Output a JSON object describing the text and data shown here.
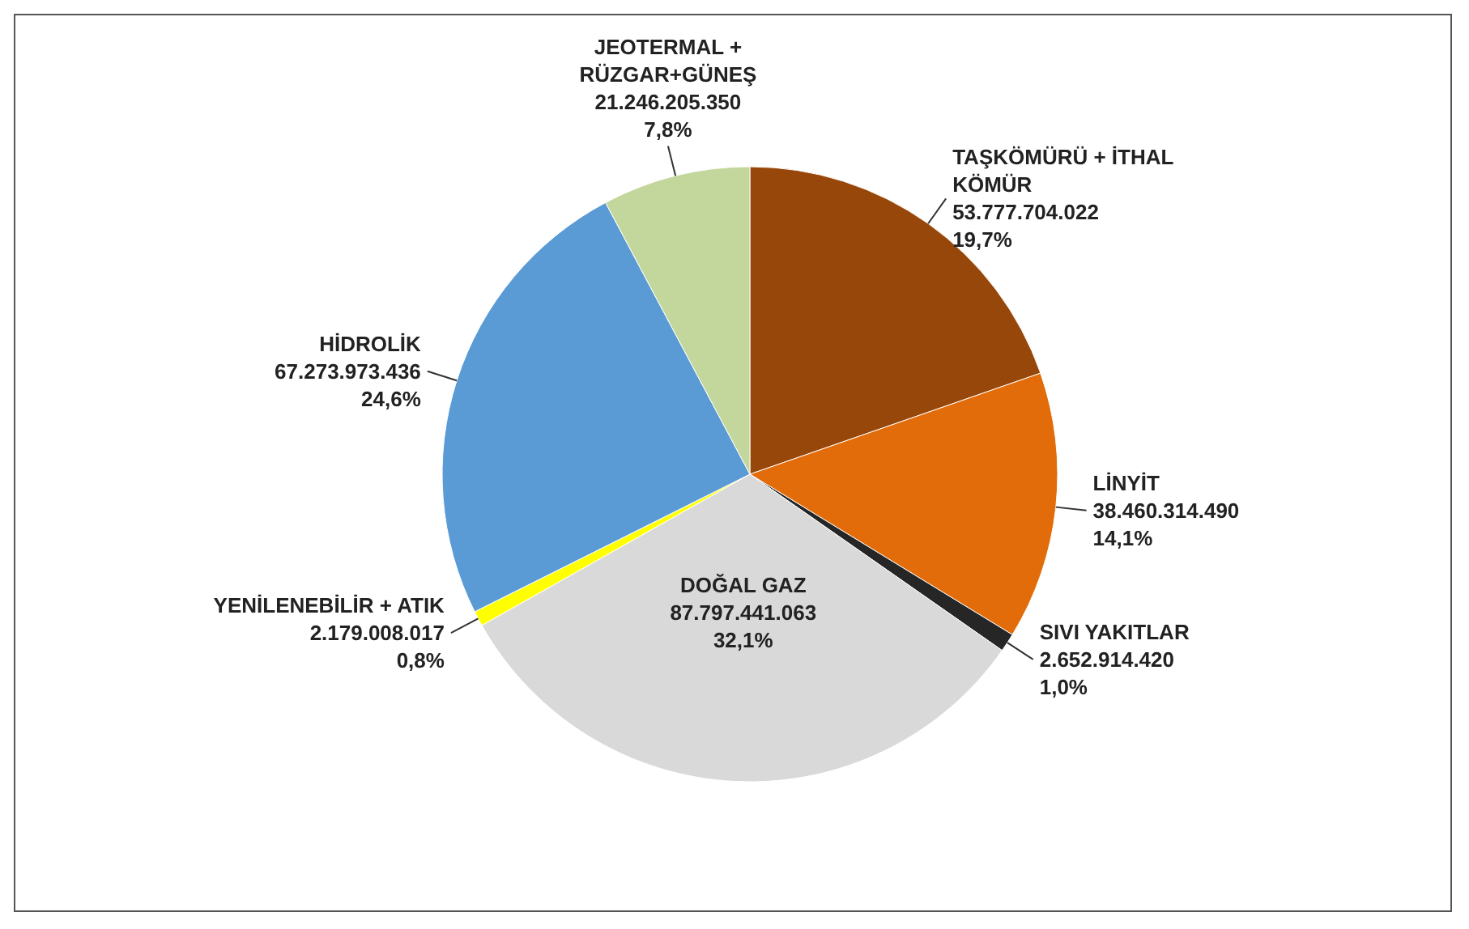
{
  "chart_data": {
    "type": "pie",
    "categories": [
      "TAŞKÖMÜRÜ + İTHAL KÖMÜR",
      "LİNYİT",
      "SIVI YAKITLAR",
      "DOĞAL GAZ",
      "YENİLENEBİLİR + ATIK",
      "HİDROLİK",
      "JEOTERMAL + RÜZGAR+GÜNEŞ"
    ],
    "values": [
      53777704022,
      38460314490,
      2652914420,
      87797441063,
      2179008017,
      67273973436,
      21246205350
    ],
    "value_labels": [
      "53.777.704.022\n19,7%",
      "38.460.314.490\n14,1%",
      "2.652.914.420\n1,0%",
      "87.797.441.063\n32,1%",
      "2.179.008.017\n0,8%",
      "67.273.973.436\n24,6%",
      "21.246.205.350\n7,8%"
    ],
    "colors": [
      "#974709",
      "#e36c0a",
      "#262626",
      "#d9d9d9",
      "#ffff00",
      "#5b9bd5",
      "#c3d69b"
    ]
  }
}
